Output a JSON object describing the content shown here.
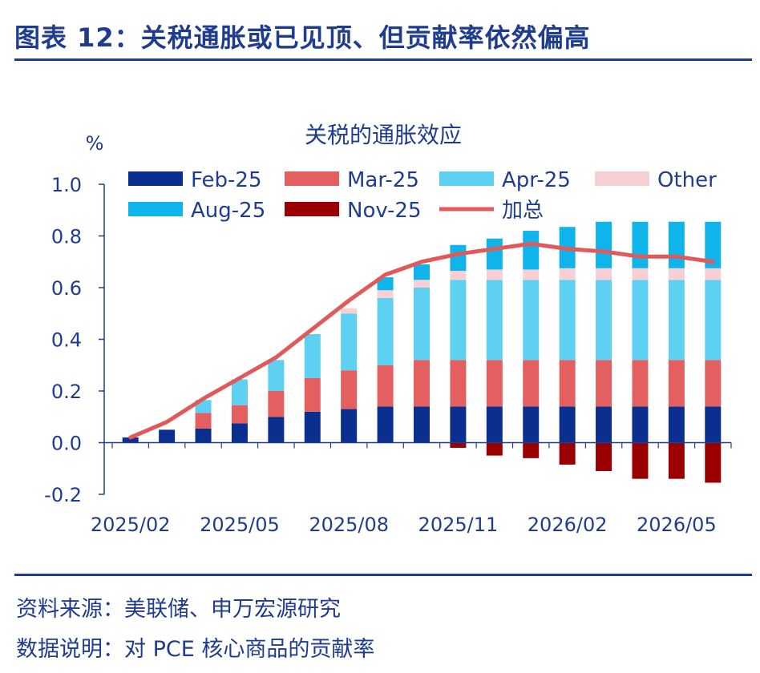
{
  "figure": {
    "title": "图表 12：关税通胀或已见顶、但贡献率依然偏高",
    "source": "资料来源：美联储、申万宏源研究",
    "note": "数据说明：对 PCE 核心商品的贡献率"
  },
  "chart_data": {
    "type": "bar",
    "stacked": true,
    "title": "关税的通胀效应",
    "ylabel": "%",
    "ylim": [
      -0.2,
      1.0
    ],
    "yticks": [
      -0.2,
      0.0,
      0.2,
      0.4,
      0.6,
      0.8,
      1.0
    ],
    "ytick_labels": [
      "-0.2",
      "0.0",
      "0.2",
      "0.4",
      "0.6",
      "0.8",
      "1.0"
    ],
    "categories": [
      "2025/02",
      "2025/03",
      "2025/04",
      "2025/05",
      "2025/06",
      "2025/07",
      "2025/08",
      "2025/09",
      "2025/10",
      "2025/11",
      "2025/12",
      "2026/01",
      "2026/02",
      "2026/03",
      "2026/04",
      "2026/05",
      "2026/06"
    ],
    "xtick_labels": [
      "2025/02",
      "2025/05",
      "2025/08",
      "2025/11",
      "2026/02",
      "2026/05"
    ],
    "grid": false,
    "legend_position": "top",
    "series": [
      {
        "name": "Feb-25",
        "color": "#0b2f8f",
        "values": [
          0.02,
          0.05,
          0.055,
          0.075,
          0.1,
          0.12,
          0.13,
          0.14,
          0.14,
          0.14,
          0.14,
          0.14,
          0.14,
          0.14,
          0.14,
          0.14,
          0.14
        ]
      },
      {
        "name": "Mar-25",
        "color": "#e46060",
        "values": [
          0,
          0,
          0.06,
          0.07,
          0.1,
          0.13,
          0.15,
          0.16,
          0.18,
          0.18,
          0.18,
          0.18,
          0.18,
          0.18,
          0.18,
          0.18,
          0.18
        ]
      },
      {
        "name": "Apr-25",
        "color": "#5ed0f2",
        "values": [
          0,
          0,
          0.05,
          0.1,
          0.12,
          0.17,
          0.22,
          0.26,
          0.28,
          0.31,
          0.31,
          0.31,
          0.31,
          0.31,
          0.31,
          0.31,
          0.31
        ]
      },
      {
        "name": "Other",
        "color": "#f8d0d4",
        "values": [
          0,
          0,
          0,
          0,
          0,
          0,
          0.02,
          0.03,
          0.03,
          0.035,
          0.04,
          0.04,
          0.045,
          0.045,
          0.045,
          0.045,
          0.045
        ]
      },
      {
        "name": "Aug-25",
        "color": "#0fb5ea",
        "values": [
          0,
          0,
          0,
          0,
          0,
          0,
          0,
          0.05,
          0.06,
          0.1,
          0.12,
          0.15,
          0.16,
          0.18,
          0.18,
          0.18,
          0.18
        ]
      },
      {
        "name": "Nov-25",
        "color": "#9b0000",
        "values": [
          0,
          0,
          0,
          0,
          0,
          0,
          0,
          0,
          0,
          -0.02,
          -0.05,
          -0.06,
          -0.085,
          -0.11,
          -0.14,
          -0.14,
          -0.155
        ]
      }
    ],
    "line": {
      "name": "加总",
      "color": "#e05a5a",
      "values": [
        0.02,
        0.08,
        0.17,
        0.25,
        0.33,
        0.44,
        0.55,
        0.65,
        0.7,
        0.73,
        0.75,
        0.77,
        0.75,
        0.74,
        0.72,
        0.72,
        0.7
      ]
    }
  }
}
